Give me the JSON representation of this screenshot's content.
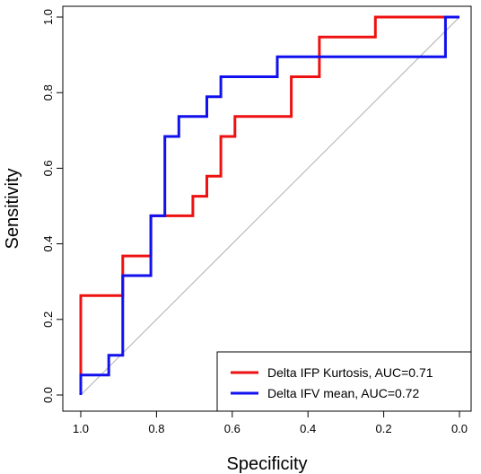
{
  "chart_data": {
    "type": "line",
    "title": "",
    "xlabel": "Specificity",
    "ylabel": "Sensitivity",
    "xlim": [
      1.0,
      0.0
    ],
    "ylim": [
      0.0,
      1.0
    ],
    "x_reversed": true,
    "x_ticks": [
      "1.0",
      "0.8",
      "0.6",
      "0.4",
      "0.2",
      "0.0"
    ],
    "y_ticks": [
      "0.0",
      "0.2",
      "0.4",
      "0.6",
      "0.8",
      "1.0"
    ],
    "x_tick_values": [
      1.0,
      0.8,
      0.6,
      0.4,
      0.2,
      0.0
    ],
    "y_tick_values": [
      0.0,
      0.2,
      0.4,
      0.6,
      0.8,
      1.0
    ],
    "grid": false,
    "reference_line": {
      "from": [
        1.0,
        0.0
      ],
      "to": [
        0.0,
        1.0
      ],
      "color": "#b0b0b0"
    },
    "legend_position": "bottom-right",
    "series": [
      {
        "name": "Delta IFP Kurtosis,  AUC=0.71",
        "color": "#ee1111",
        "points": [
          [
            1.0,
            0.0
          ],
          [
            1.0,
            0.263
          ],
          [
            0.889,
            0.263
          ],
          [
            0.889,
            0.368
          ],
          [
            0.815,
            0.368
          ],
          [
            0.815,
            0.474
          ],
          [
            0.704,
            0.474
          ],
          [
            0.704,
            0.526
          ],
          [
            0.667,
            0.526
          ],
          [
            0.667,
            0.579
          ],
          [
            0.63,
            0.579
          ],
          [
            0.63,
            0.684
          ],
          [
            0.593,
            0.684
          ],
          [
            0.593,
            0.737
          ],
          [
            0.444,
            0.737
          ],
          [
            0.444,
            0.842
          ],
          [
            0.37,
            0.842
          ],
          [
            0.37,
            0.947
          ],
          [
            0.222,
            0.947
          ],
          [
            0.222,
            1.0
          ],
          [
            0.0,
            1.0
          ]
        ]
      },
      {
        "name": "Delta IFV mean,  AUC=0.72",
        "color": "#1111ee",
        "points": [
          [
            1.0,
            0.0
          ],
          [
            1.0,
            0.053
          ],
          [
            0.926,
            0.053
          ],
          [
            0.926,
            0.105
          ],
          [
            0.889,
            0.105
          ],
          [
            0.889,
            0.316
          ],
          [
            0.815,
            0.316
          ],
          [
            0.815,
            0.474
          ],
          [
            0.778,
            0.474
          ],
          [
            0.778,
            0.684
          ],
          [
            0.741,
            0.684
          ],
          [
            0.741,
            0.737
          ],
          [
            0.667,
            0.737
          ],
          [
            0.667,
            0.789
          ],
          [
            0.63,
            0.789
          ],
          [
            0.63,
            0.842
          ],
          [
            0.481,
            0.842
          ],
          [
            0.481,
            0.895
          ],
          [
            0.037,
            0.895
          ],
          [
            0.037,
            1.0
          ],
          [
            0.0,
            1.0
          ]
        ]
      }
    ]
  }
}
